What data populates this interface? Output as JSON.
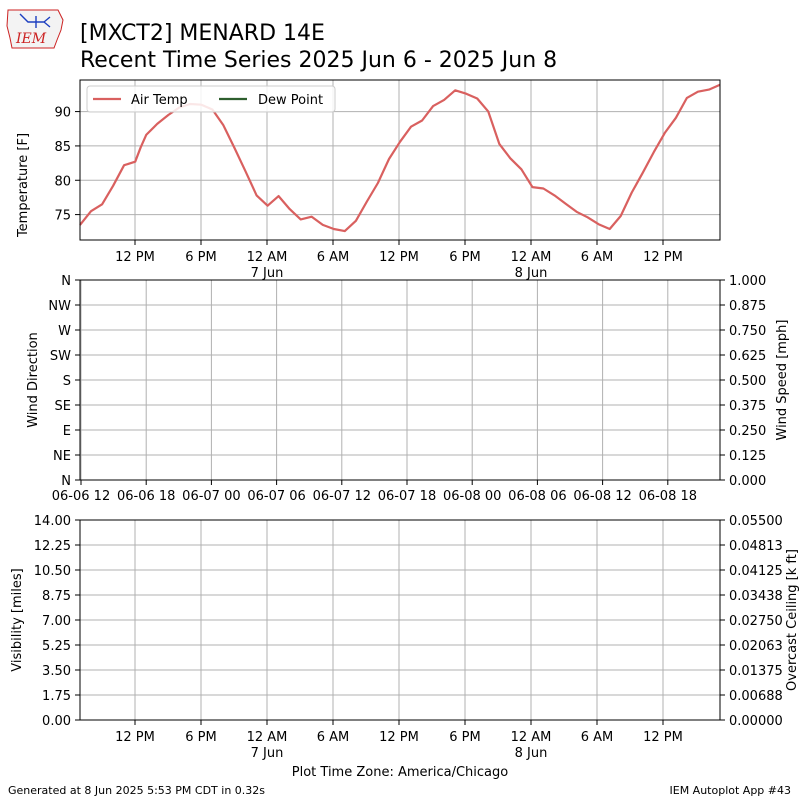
{
  "header": {
    "logo_text": "IEM",
    "title_line1": "[MXCT2] MENARD 14E",
    "title_line2": "Recent Time Series 2025 Jun 6 - 2025 Jun 8"
  },
  "footer": {
    "generated": "Generated at 8 Jun 2025 5:53 PM CDT in 0.32s",
    "app": "IEM Autoplot App #43"
  },
  "colors": {
    "air_temp": "#d9605f",
    "dew_point": "#2e5e2e",
    "ceiling_label": "#008000",
    "grid": "#b0b0b0"
  },
  "chart_data": [
    {
      "type": "line",
      "ylabel": "Temperature [F]",
      "ylim": [
        71.3,
        94.6
      ],
      "grid": true,
      "legend_placement": "top-left",
      "x_ticks": [
        "12 PM",
        "6 PM",
        "12 AM",
        "6 AM",
        "12 PM",
        "6 PM",
        "12 AM",
        "6 AM",
        "12 PM"
      ],
      "x_date_labels": [
        "7 Jun",
        "8 Jun"
      ],
      "y_ticks": [
        "75",
        "80",
        "85",
        "90"
      ],
      "series": [
        {
          "name": "Air Temp",
          "x_hours": [
            0,
            1,
            2,
            3,
            4,
            5,
            5.5,
            6,
            7,
            8,
            9,
            10,
            11,
            12,
            13,
            14,
            15,
            16,
            17,
            18,
            19,
            20,
            21,
            22,
            23,
            24,
            25,
            26,
            27,
            28,
            29,
            30,
            31,
            32,
            33,
            34,
            35,
            36,
            37,
            38,
            39,
            40,
            41,
            42,
            43,
            44,
            45,
            46,
            47,
            48,
            49,
            50,
            51,
            52,
            53,
            54,
            55,
            56,
            57,
            58
          ],
          "values": [
            73.5,
            75.5,
            76.5,
            79.2,
            82.2,
            82.7,
            84.8,
            86.6,
            88.2,
            89.5,
            90.6,
            91.1,
            91.0,
            90.3,
            88.0,
            84.7,
            81.3,
            77.8,
            76.3,
            77.7,
            75.8,
            74.3,
            74.7,
            73.5,
            72.9,
            72.6,
            74.1,
            76.9,
            79.6,
            83.1,
            85.6,
            87.8,
            88.7,
            90.8,
            91.7,
            93.1,
            92.6,
            91.9,
            90.0,
            85.3,
            83.2,
            81.6,
            79.0,
            78.8,
            77.8,
            76.6,
            75.4,
            74.6,
            73.6,
            72.9,
            74.8,
            78.2,
            81.1,
            84.1,
            86.9,
            89.1,
            92.0,
            92.9,
            93.2,
            93.9
          ]
        },
        {
          "name": "Dew Point",
          "values": []
        }
      ]
    },
    {
      "type": "line",
      "ylabel": "Wind Direction",
      "y2label": "Wind Speed [mph]",
      "y_ticks": [
        "N",
        "NE",
        "E",
        "SE",
        "S",
        "SW",
        "W",
        "NW",
        "N"
      ],
      "y2_ticks": [
        "0.000",
        "0.125",
        "0.250",
        "0.375",
        "0.500",
        "0.625",
        "0.750",
        "0.875",
        "1.000"
      ],
      "y2lim": [
        0,
        1
      ],
      "x_ticks": [
        "06-06 12",
        "06-06 18",
        "06-07 00",
        "06-07 06",
        "06-07 12",
        "06-07 18",
        "06-08 00",
        "06-08 06",
        "06-08 12",
        "06-08 18"
      ],
      "grid": true,
      "series": []
    },
    {
      "type": "line",
      "ylabel": "Visibility [miles]",
      "y2label": "Overcast Ceiling [k ft]",
      "ylim": [
        0,
        14
      ],
      "y2lim": [
        0,
        0.055
      ],
      "y_ticks": [
        "0.00",
        "1.75",
        "3.50",
        "5.25",
        "7.00",
        "8.75",
        "10.50",
        "12.25",
        "14.00"
      ],
      "y2_ticks": [
        "0.00000",
        "0.00688",
        "0.01375",
        "0.02063",
        "0.02750",
        "0.03438",
        "0.04125",
        "0.04813",
        "0.05500"
      ],
      "x_ticks": [
        "12 PM",
        "6 PM",
        "12 AM",
        "6 AM",
        "12 PM",
        "6 PM",
        "12 AM",
        "6 AM",
        "12 PM"
      ],
      "x_date_labels": [
        "7 Jun",
        "8 Jun"
      ],
      "xlabel": "Plot Time Zone: America/Chicago",
      "grid": true,
      "series": []
    }
  ]
}
